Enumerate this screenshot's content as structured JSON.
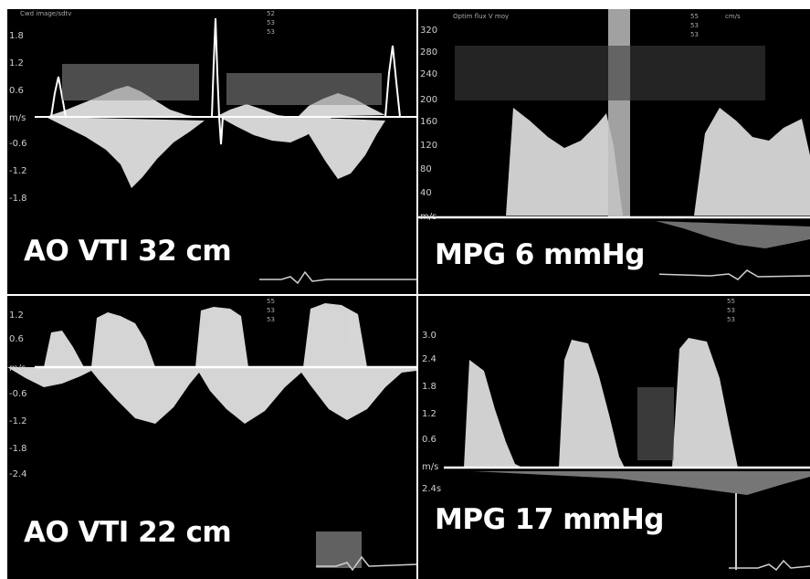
{
  "panels": [
    {
      "header": "Cwd image/sdtv",
      "readout": [
        "52",
        "53",
        "53"
      ],
      "y_ticks": [
        "1.8",
        "1.2",
        "0.6",
        "m/s",
        "-0.6",
        "-1.2",
        "-1.8"
      ],
      "caption": "AO VTI 32 cm"
    },
    {
      "header": "Optim flux V moy",
      "readout": [
        "55",
        "53",
        "53"
      ],
      "unit": "cm/s",
      "y_ticks": [
        "320",
        "280",
        "240",
        "200",
        "160",
        "120",
        "80",
        "40",
        "m/s"
      ],
      "caption": "MPG 6 mmHg"
    },
    {
      "readout": [
        "55",
        "53",
        "53"
      ],
      "y_ticks": [
        "1.2",
        "0.6",
        "m/s",
        "-0.6",
        "-1.2",
        "-1.8",
        "-2.4"
      ],
      "caption": "AO VTI 22 cm"
    },
    {
      "readout": [
        "55",
        "53",
        "53"
      ],
      "y_ticks": [
        "3.0",
        "2.4",
        "1.8",
        "1.2",
        "0.6",
        "m/s",
        "2.4s"
      ],
      "caption": "MPG 17 mmHg"
    }
  ]
}
